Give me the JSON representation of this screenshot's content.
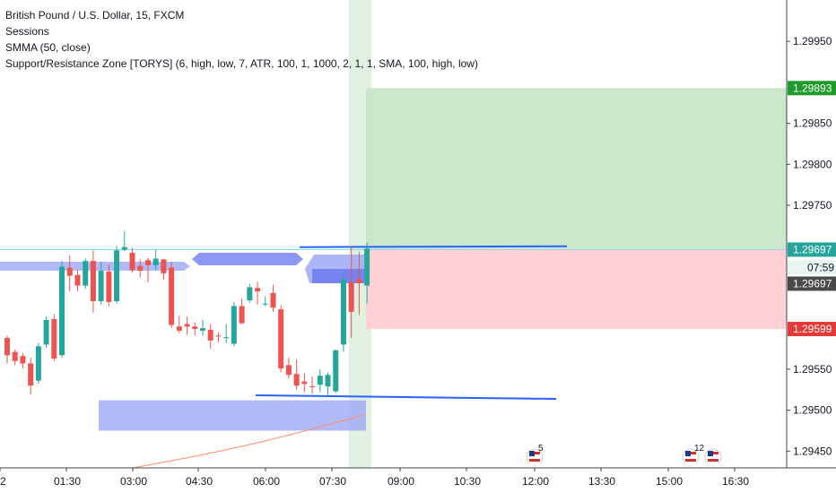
{
  "legend": {
    "title": "British Pound / U.S. Dollar, 15, FXCM",
    "line2": "Sessions",
    "line3": "SMMA (50, close)",
    "line4": "Support/Resistance Zone [TORYS] (6, high, low, 7, ATR, 100, 1, 1000, 2, 1, 1, SMA, 100, high, low)"
  },
  "colors": {
    "up": "#26a69a",
    "down": "#ef5350",
    "profit_zone": "#c8e6c9",
    "loss_zone": "#ffcdd2",
    "sr_zone": "#9fa8f5",
    "sr_zone_dark": "#6f7cf0",
    "trend_line": "#2962ff",
    "price_line": "#80deea",
    "smma": "#ff8a65",
    "session_band": "#c8e6c9",
    "target_label": "#1e9b2a",
    "stop_label": "#e53935",
    "current_label": "#4a4a4a"
  },
  "chart_data": {
    "type": "candlestick",
    "symbol": "British Pound / U.S. Dollar",
    "interval": "15",
    "ylim": [
      1.29435,
      1.29995
    ],
    "y_ticks": [
      1.2995,
      1.2985,
      1.298,
      1.2975,
      1.2955,
      1.295,
      1.2945
    ],
    "y_tick_labels": [
      "1.29950",
      "1.29850",
      "1.29800",
      "1.29750",
      "1.29550",
      "1.29500",
      "1.29450"
    ],
    "x_tick_labels": [
      "2",
      "01:30",
      "03:00",
      "04:30",
      "06:00",
      "07:30",
      "09:00",
      "10:30",
      "12:00",
      "13:30",
      "15:00",
      "16:30"
    ],
    "candles": [
      [
        1.29588,
        1.29591,
        1.29557,
        1.29567
      ],
      [
        1.29571,
        1.29574,
        1.29555,
        1.2956
      ],
      [
        1.29566,
        1.2957,
        1.29551,
        1.29557
      ],
      [
        1.29557,
        1.29564,
        1.29519,
        1.2953
      ],
      [
        1.29536,
        1.29582,
        1.29532,
        1.29578
      ],
      [
        1.2958,
        1.29614,
        1.29576,
        1.2961
      ],
      [
        1.29611,
        1.29617,
        1.2956,
        1.29563
      ],
      [
        1.29567,
        1.29682,
        1.29564,
        1.29675
      ],
      [
        1.29674,
        1.29689,
        1.29645,
        1.29664
      ],
      [
        1.29665,
        1.29671,
        1.29645,
        1.29652
      ],
      [
        1.29652,
        1.29685,
        1.29648,
        1.29682
      ],
      [
        1.29682,
        1.29695,
        1.29619,
        1.29633
      ],
      [
        1.29633,
        1.29681,
        1.29629,
        1.2967
      ],
      [
        1.29669,
        1.29678,
        1.29627,
        1.29632
      ],
      [
        1.29633,
        1.297,
        1.2963,
        1.29695
      ],
      [
        1.29696,
        1.29718,
        1.29694,
        1.29699
      ],
      [
        1.29692,
        1.29698,
        1.29668,
        1.29671
      ],
      [
        1.29676,
        1.29684,
        1.29662,
        1.2967
      ],
      [
        1.29683,
        1.29686,
        1.29656,
        1.29677
      ],
      [
        1.29677,
        1.29696,
        1.29671,
        1.29685
      ],
      [
        1.29684,
        1.29684,
        1.29659,
        1.29667
      ],
      [
        1.29674,
        1.29681,
        1.296,
        1.29604
      ],
      [
        1.29602,
        1.29615,
        1.29594,
        1.29597
      ],
      [
        1.29605,
        1.29614,
        1.29592,
        1.29602
      ],
      [
        1.29602,
        1.29607,
        1.29591,
        1.29599
      ],
      [
        1.29597,
        1.2961,
        1.29591,
        1.296
      ],
      [
        1.29598,
        1.29605,
        1.29575,
        1.29585
      ],
      [
        1.29591,
        1.29595,
        1.29583,
        1.2959
      ],
      [
        1.29589,
        1.29605,
        1.29582,
        1.29589
      ],
      [
        1.29581,
        1.29632,
        1.29578,
        1.29627
      ],
      [
        1.29627,
        1.29636,
        1.29605,
        1.29606
      ],
      [
        1.29634,
        1.29654,
        1.29631,
        1.2965
      ],
      [
        1.29649,
        1.29657,
        1.29629,
        1.29645
      ],
      [
        1.2963,
        1.29639,
        1.29627,
        1.2963
      ],
      [
        1.29643,
        1.29653,
        1.2962,
        1.29625
      ],
      [
        1.29623,
        1.29628,
        1.29546,
        1.29551
      ],
      [
        1.29555,
        1.29564,
        1.29539,
        1.29543
      ],
      [
        1.29544,
        1.29562,
        1.29525,
        1.2953
      ],
      [
        1.29535,
        1.29545,
        1.29522,
        1.29532
      ],
      [
        1.29529,
        1.29541,
        1.2952,
        1.29528
      ],
      [
        1.29531,
        1.2955,
        1.29522,
        1.29542
      ],
      [
        1.29529,
        1.29546,
        1.29516,
        1.29543
      ],
      [
        1.29523,
        1.29574,
        1.29521,
        1.29573
      ],
      [
        1.2958,
        1.29665,
        1.29571,
        1.29659
      ],
      [
        1.29656,
        1.29699,
        1.29588,
        1.2962
      ],
      [
        1.2966,
        1.29693,
        1.29616,
        1.29655
      ],
      [
        1.29652,
        1.29705,
        1.2963,
        1.29697
      ]
    ],
    "trade": {
      "entry": 1.29697,
      "target": 1.29893,
      "stop": 1.29599
    },
    "price_labels": {
      "target": "1.29893",
      "current": "1.29697",
      "countdown": "07:59",
      "entry": "1.29697",
      "stop": "1.29599"
    },
    "sr_zones": [
      {
        "from": 1.29475,
        "to": 1.29512
      },
      {
        "from": 1.2967,
        "to": 1.29688
      },
      {
        "from": 1.29668,
        "to": 1.29686
      }
    ],
    "trend_lines": [
      1.297,
      1.29517
    ],
    "event_badges": [
      "5",
      "12"
    ]
  }
}
